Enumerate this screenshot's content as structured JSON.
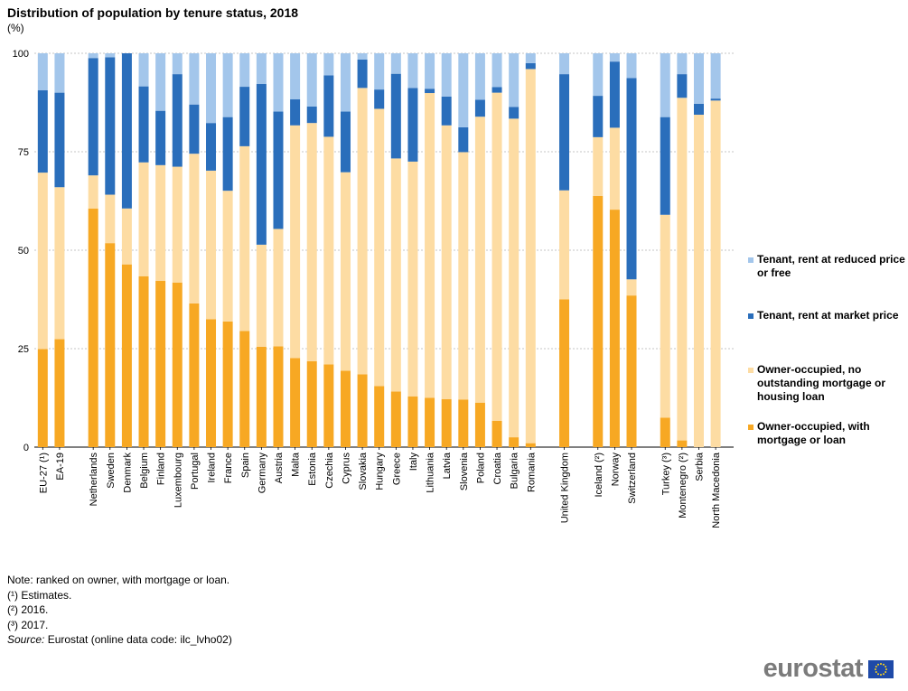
{
  "header": {
    "title": "Distribution of population by  tenure status, 2018",
    "unit": "(%)"
  },
  "legend": {
    "items": [
      {
        "label": "Tenant, rent at reduced price or free",
        "color": "#a3c6eb"
      },
      {
        "label": "Tenant, rent at market price",
        "color": "#2a6ebb"
      },
      {
        "label": "Owner-occupied, no outstanding mortgage or housing loan",
        "color": "#fddca3"
      },
      {
        "label": "Owner-occupied, with mortgage or loan",
        "color": "#f7a823"
      }
    ]
  },
  "notes": {
    "lines": [
      "Note: ranked on owner, with mortgage or loan.",
      "(¹) Estimates.",
      "(²) 2016.",
      "(³) 2017."
    ],
    "source_label": "Source:",
    "source_text": " Eurostat (online data code: ilc_lvho02)"
  },
  "brand": {
    "name": "eurostat"
  },
  "chart_data": {
    "type": "bar",
    "stacked": true,
    "orientation": "vertical",
    "ylim": [
      0,
      100
    ],
    "yticks": [
      0,
      25,
      50,
      75,
      100
    ],
    "grid": true,
    "legend_position": "right",
    "groups": [
      [
        "EU-27 (¹)",
        "EA-19"
      ],
      [
        "Netherlands",
        "Sweden",
        "Denmark",
        "Belgium",
        "Finland",
        "Luxembourg",
        "Portugal",
        "Ireland",
        "France",
        "Spain",
        "Germany",
        "Austria",
        "Malta",
        "Estonia",
        "Czechia",
        "Cyprus",
        "Slovakia",
        "Hungary",
        "Greece",
        "Italy",
        "Lithuania",
        "Latvia",
        "Slovenia",
        "Poland",
        "Croatia",
        "Bulgaria",
        "Romania"
      ],
      [
        "United Kingdom"
      ],
      [
        "Iceland (²)",
        "Norway",
        "Switzerland"
      ],
      [
        "Turkey (³)",
        "Montenegro (²)",
        "Serbia",
        "North Macedonia"
      ]
    ],
    "categories": [
      "EU-27 (¹)",
      "EA-19",
      "Netherlands",
      "Sweden",
      "Denmark",
      "Belgium",
      "Finland",
      "Luxembourg",
      "Portugal",
      "Ireland",
      "France",
      "Spain",
      "Germany",
      "Austria",
      "Malta",
      "Estonia",
      "Czechia",
      "Cyprus",
      "Slovakia",
      "Hungary",
      "Greece",
      "Italy",
      "Lithuania",
      "Latvia",
      "Slovenia",
      "Poland",
      "Croatia",
      "Bulgaria",
      "Romania",
      "United Kingdom",
      "Iceland (²)",
      "Norway",
      "Switzerland",
      "Turkey (³)",
      "Montenegro (²)",
      "Serbia",
      "North Macedonia"
    ],
    "series": [
      {
        "name": "Owner-occupied, with mortgage or loan",
        "values": [
          24.9,
          27.4,
          60.6,
          51.8,
          46.4,
          43.4,
          42.2,
          41.8,
          36.5,
          32.5,
          31.9,
          29.5,
          25.5,
          25.6,
          22.6,
          21.8,
          21.0,
          19.4,
          18.5,
          15.5,
          14.1,
          12.9,
          12.5,
          12.2,
          12.1,
          11.3,
          6.7,
          2.5,
          1.0,
          37.5,
          63.8,
          60.3,
          38.5,
          7.5,
          1.7,
          0.0,
          0.0
        ]
      },
      {
        "name": "Owner-occupied, no outstanding mortgage or housing loan",
        "values": [
          44.8,
          38.6,
          8.4,
          12.3,
          14.2,
          28.9,
          29.4,
          29.4,
          38.0,
          37.7,
          33.2,
          46.9,
          25.9,
          29.8,
          59.1,
          60.5,
          57.8,
          50.4,
          72.7,
          70.4,
          59.2,
          59.6,
          77.4,
          69.5,
          62.8,
          72.6,
          83.3,
          80.9,
          95.0,
          27.7,
          14.9,
          20.8,
          4.1,
          51.5,
          87.0,
          84.4,
          88.0
        ]
      },
      {
        "name": "Tenant, rent at market price",
        "values": [
          20.9,
          24.0,
          29.8,
          34.9,
          39.4,
          19.3,
          13.8,
          23.5,
          12.5,
          12.1,
          18.7,
          15.1,
          40.8,
          29.8,
          6.6,
          4.2,
          15.6,
          15.4,
          7.2,
          4.9,
          21.5,
          18.7,
          1.1,
          7.3,
          6.3,
          4.3,
          1.4,
          3.0,
          1.5,
          29.5,
          10.5,
          16.8,
          51.1,
          24.8,
          6.0,
          2.8,
          0.5
        ]
      },
      {
        "name": "Tenant, rent at reduced price or free",
        "values": [
          9.4,
          10.0,
          1.2,
          1.0,
          0.0,
          8.4,
          14.6,
          5.3,
          13.0,
          17.7,
          16.2,
          8.5,
          7.8,
          14.8,
          11.7,
          13.5,
          5.6,
          14.8,
          1.6,
          9.2,
          5.2,
          8.8,
          9.0,
          11.0,
          18.8,
          11.8,
          8.6,
          13.6,
          2.5,
          5.3,
          10.8,
          2.1,
          6.3,
          16.2,
          5.3,
          12.8,
          11.5
        ]
      }
    ]
  }
}
